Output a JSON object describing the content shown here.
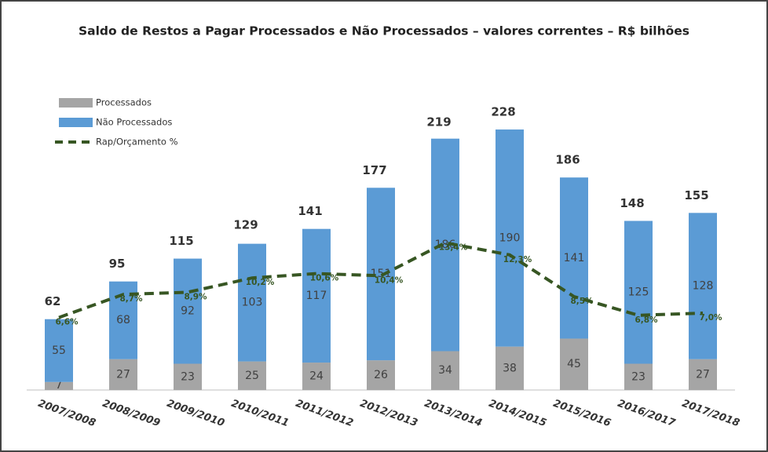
{
  "chart_data": {
    "type": "bar",
    "title": "Saldo de Restos a Pagar Processados e Não Processados – valores correntes – R$ bilhões",
    "categories": [
      "2007/2008",
      "2008/2009",
      "2009/2010",
      "2010/2011",
      "2011/2012",
      "2012/2013",
      "2013/2014",
      "2014/2015",
      "2015/2016",
      "2016/2017",
      "2017/2018"
    ],
    "stacked": true,
    "series": [
      {
        "name": "Processados",
        "color": "#a5a5a5",
        "values": [
          7,
          27,
          23,
          25,
          24,
          26,
          34,
          38,
          45,
          23,
          27
        ]
      },
      {
        "name": "Não Processados",
        "color": "#5b9bd5",
        "values": [
          55,
          68,
          92,
          103,
          117,
          151,
          186,
          190,
          141,
          125,
          128
        ]
      },
      {
        "name": "Rap/Orçamento %",
        "type": "line",
        "dashed": true,
        "axis": "y2",
        "color": "#375623",
        "values": [
          6.6,
          8.7,
          8.9,
          10.2,
          10.6,
          10.4,
          13.4,
          12.3,
          8.5,
          6.8,
          7.0
        ],
        "value_labels": [
          "6,6%",
          "8,7%",
          "8,9%",
          "10,2%",
          "10,6%",
          "10,4%",
          "13,4%",
          "12,3%",
          "8,5%",
          "6,8%",
          "7,0%"
        ]
      }
    ],
    "totals": [
      62,
      95,
      115,
      129,
      141,
      177,
      219,
      228,
      186,
      148,
      155
    ],
    "ylim": [
      0,
      250
    ],
    "y2lim": [
      0,
      26
    ],
    "legend": "top-left"
  }
}
